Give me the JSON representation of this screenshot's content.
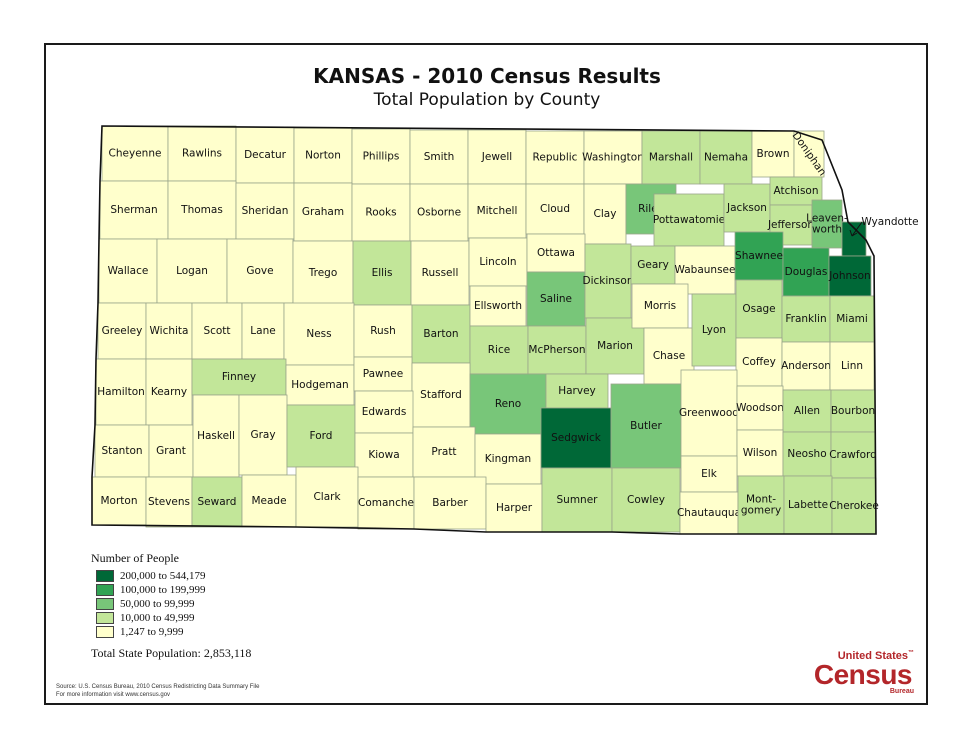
{
  "title": "KANSAS - 2010 Census Results",
  "subtitle": "Total Population by County",
  "colors": {
    "class1": "#ffffcc",
    "class2": "#c2e699",
    "class3": "#78c679",
    "class4": "#31a354",
    "class5": "#006837"
  },
  "legend": {
    "title": "Number of People",
    "items": [
      {
        "label": "200,000 to 544,179",
        "color": "#006837"
      },
      {
        "label": "100,000 to 199,999",
        "color": "#31a354"
      },
      {
        "label": "50,000 to 99,999",
        "color": "#78c679"
      },
      {
        "label": "10,000 to 49,999",
        "color": "#c2e699"
      },
      {
        "label": "1,247 to 9,999",
        "color": "#ffffcc"
      }
    ]
  },
  "total": "Total State Population:  2,853,118",
  "source_line1": "Source:  U.S. Census Bureau, 2010 Census Redistricting Data Summary File",
  "source_line2": "For more information visit www.census.gov",
  "logo": {
    "line1": "United States",
    "tm": "™",
    "line2": "Census",
    "line3": "Bureau"
  },
  "counties": [
    {
      "name": "Cheyenne",
      "cls": 1
    },
    {
      "name": "Rawlins",
      "cls": 1
    },
    {
      "name": "Decatur",
      "cls": 1
    },
    {
      "name": "Norton",
      "cls": 1
    },
    {
      "name": "Phillips",
      "cls": 1
    },
    {
      "name": "Smith",
      "cls": 1
    },
    {
      "name": "Jewell",
      "cls": 1
    },
    {
      "name": "Republic",
      "cls": 1
    },
    {
      "name": "Washington",
      "cls": 1
    },
    {
      "name": "Marshall",
      "cls": 2
    },
    {
      "name": "Nemaha",
      "cls": 2
    },
    {
      "name": "Brown",
      "cls": 1
    },
    {
      "name": "Doniphan",
      "cls": 1
    },
    {
      "name": "Sherman",
      "cls": 1
    },
    {
      "name": "Thomas",
      "cls": 1
    },
    {
      "name": "Sheridan",
      "cls": 1
    },
    {
      "name": "Graham",
      "cls": 1
    },
    {
      "name": "Rooks",
      "cls": 1
    },
    {
      "name": "Osborne",
      "cls": 1
    },
    {
      "name": "Mitchell",
      "cls": 1
    },
    {
      "name": "Cloud",
      "cls": 1
    },
    {
      "name": "Clay",
      "cls": 1
    },
    {
      "name": "Riley",
      "cls": 3
    },
    {
      "name": "Pottawatomie",
      "cls": 2
    },
    {
      "name": "Jackson",
      "cls": 2
    },
    {
      "name": "Atchison",
      "cls": 2
    },
    {
      "name": "Jefferson",
      "cls": 2
    },
    {
      "name": "Leaven-\nworth",
      "cls": 3
    },
    {
      "name": "Wyandotte",
      "cls": 5
    },
    {
      "name": "Wallace",
      "cls": 1
    },
    {
      "name": "Logan",
      "cls": 1
    },
    {
      "name": "Gove",
      "cls": 1
    },
    {
      "name": "Trego",
      "cls": 1
    },
    {
      "name": "Ellis",
      "cls": 2
    },
    {
      "name": "Russell",
      "cls": 1
    },
    {
      "name": "Lincoln",
      "cls": 1
    },
    {
      "name": "Ottawa",
      "cls": 1
    },
    {
      "name": "Saline",
      "cls": 3
    },
    {
      "name": "Dickinson",
      "cls": 2
    },
    {
      "name": "Geary",
      "cls": 2
    },
    {
      "name": "Wabaunsee",
      "cls": 1
    },
    {
      "name": "Shawnee",
      "cls": 4
    },
    {
      "name": "Douglas",
      "cls": 4
    },
    {
      "name": "Johnson",
      "cls": 5
    },
    {
      "name": "Greeley",
      "cls": 1
    },
    {
      "name": "Wichita",
      "cls": 1
    },
    {
      "name": "Scott",
      "cls": 1
    },
    {
      "name": "Lane",
      "cls": 1
    },
    {
      "name": "Ness",
      "cls": 1
    },
    {
      "name": "Rush",
      "cls": 1
    },
    {
      "name": "Barton",
      "cls": 2
    },
    {
      "name": "Ellsworth",
      "cls": 1
    },
    {
      "name": "Rice",
      "cls": 2
    },
    {
      "name": "McPherson",
      "cls": 2
    },
    {
      "name": "Marion",
      "cls": 2
    },
    {
      "name": "Morris",
      "cls": 1
    },
    {
      "name": "Chase",
      "cls": 1
    },
    {
      "name": "Lyon",
      "cls": 2
    },
    {
      "name": "Osage",
      "cls": 2
    },
    {
      "name": "Franklin",
      "cls": 2
    },
    {
      "name": "Miami",
      "cls": 2
    },
    {
      "name": "Hamilton",
      "cls": 1
    },
    {
      "name": "Kearny",
      "cls": 1
    },
    {
      "name": "Finney",
      "cls": 2
    },
    {
      "name": "Hodgeman",
      "cls": 1
    },
    {
      "name": "Pawnee",
      "cls": 1
    },
    {
      "name": "Stafford",
      "cls": 1
    },
    {
      "name": "Reno",
      "cls": 3
    },
    {
      "name": "Harvey",
      "cls": 2
    },
    {
      "name": "Coffey",
      "cls": 1
    },
    {
      "name": "Anderson",
      "cls": 1
    },
    {
      "name": "Linn",
      "cls": 1
    },
    {
      "name": "Stanton",
      "cls": 1
    },
    {
      "name": "Grant",
      "cls": 1
    },
    {
      "name": "Haskell",
      "cls": 1
    },
    {
      "name": "Gray",
      "cls": 1
    },
    {
      "name": "Ford",
      "cls": 2
    },
    {
      "name": "Edwards",
      "cls": 1
    },
    {
      "name": "Kiowa",
      "cls": 1
    },
    {
      "name": "Pratt",
      "cls": 1
    },
    {
      "name": "Kingman",
      "cls": 1
    },
    {
      "name": "Sedgwick",
      "cls": 5
    },
    {
      "name": "Butler",
      "cls": 3
    },
    {
      "name": "Greenwood",
      "cls": 1
    },
    {
      "name": "Woodson",
      "cls": 1
    },
    {
      "name": "Allen",
      "cls": 2
    },
    {
      "name": "Bourbon",
      "cls": 2
    },
    {
      "name": "Wilson",
      "cls": 1
    },
    {
      "name": "Neosho",
      "cls": 2
    },
    {
      "name": "Crawford",
      "cls": 2
    },
    {
      "name": "Elk",
      "cls": 1
    },
    {
      "name": "Morton",
      "cls": 1
    },
    {
      "name": "Stevens",
      "cls": 1
    },
    {
      "name": "Seward",
      "cls": 2
    },
    {
      "name": "Meade",
      "cls": 1
    },
    {
      "name": "Clark",
      "cls": 1
    },
    {
      "name": "Comanche",
      "cls": 1
    },
    {
      "name": "Barber",
      "cls": 1
    },
    {
      "name": "Harper",
      "cls": 1
    },
    {
      "name": "Sumner",
      "cls": 2
    },
    {
      "name": "Cowley",
      "cls": 2
    },
    {
      "name": "Chautauqua",
      "cls": 1
    },
    {
      "name": "Mont-\ngomery",
      "cls": 2
    },
    {
      "name": "Labette",
      "cls": 2
    },
    {
      "name": "Cherokee",
      "cls": 2
    }
  ]
}
